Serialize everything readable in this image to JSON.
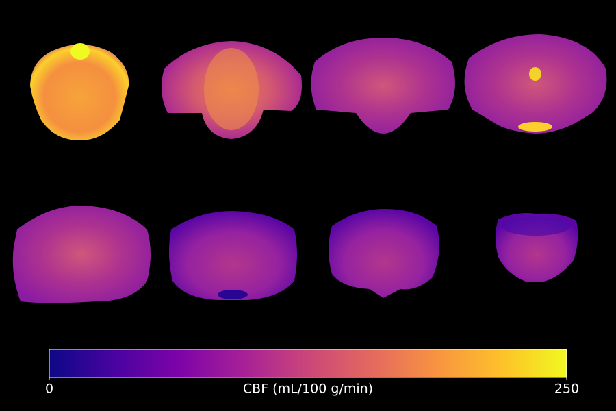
{
  "colorbar": {
    "label": "CBF (mL/100 g/min)",
    "range": [
      0,
      250
    ],
    "ticks": [
      0,
      250
    ]
  }
}
